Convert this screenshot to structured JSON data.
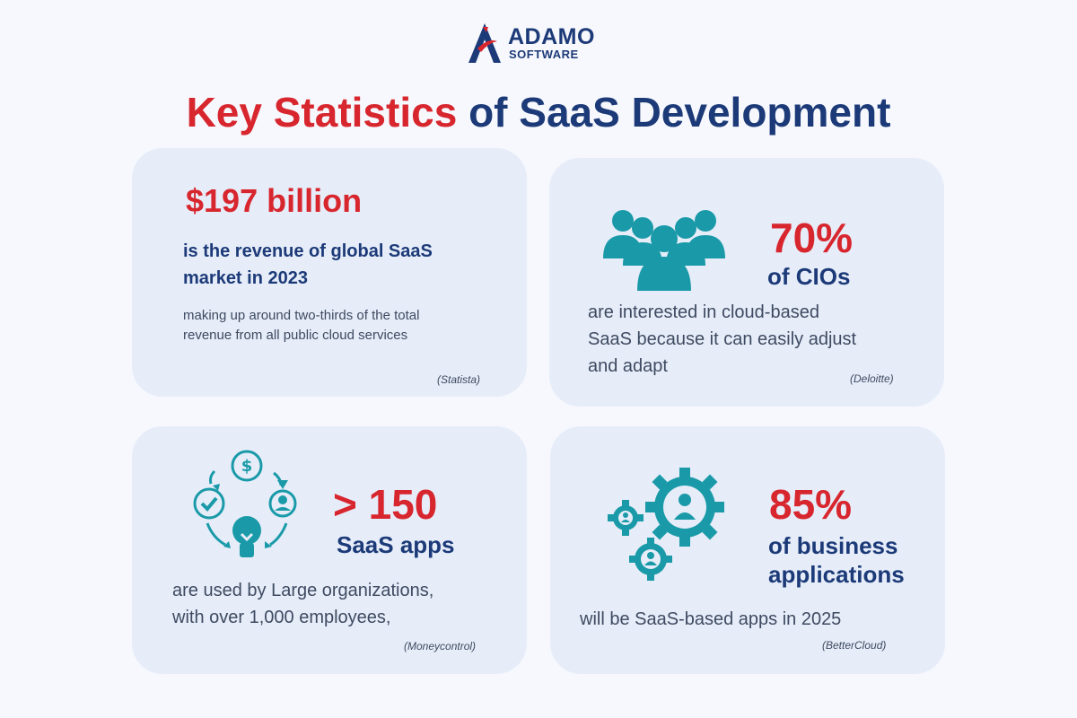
{
  "brand": {
    "line1": "ADAMO",
    "line2": "SOFTWARE"
  },
  "headline": {
    "part_red": "Key Statistics",
    "part_blue": "of SaaS Development"
  },
  "colors": {
    "accent_red": "#d8262e",
    "navy": "#1c3a78",
    "teal": "#1a9aa8",
    "card_bg": "#e6edf9",
    "page_bg": "#f6f8fd"
  },
  "cards": [
    {
      "stat": "$197 billion",
      "subtitle_lines": [
        "is the revenue of global SaaS",
        "market in 2023"
      ],
      "body_lines": [
        "making up around two-thirds of the total",
        "revenue from all public cloud services"
      ],
      "source": "(Statista)"
    },
    {
      "icon": "group-people-icon",
      "stat": "70%",
      "subtitle_lines": [
        "of CIOs"
      ],
      "body_lines": [
        "are interested in cloud-based",
        "SaaS because it can easily adjust",
        "and adapt"
      ],
      "source": "(Deloitte)"
    },
    {
      "icon": "business-cycle-icon",
      "stat": "> 150",
      "subtitle_lines": [
        "SaaS apps"
      ],
      "body_lines": [
        "are used by Large organizations,",
        "with over 1,000 employees,"
      ],
      "source": "(Moneycontrol)"
    },
    {
      "icon": "gears-people-icon",
      "stat": "85%",
      "subtitle_lines": [
        "of business",
        "applications"
      ],
      "body_lines": [
        "will be SaaS-based apps in 2025"
      ],
      "source": "(BetterCloud)"
    }
  ]
}
